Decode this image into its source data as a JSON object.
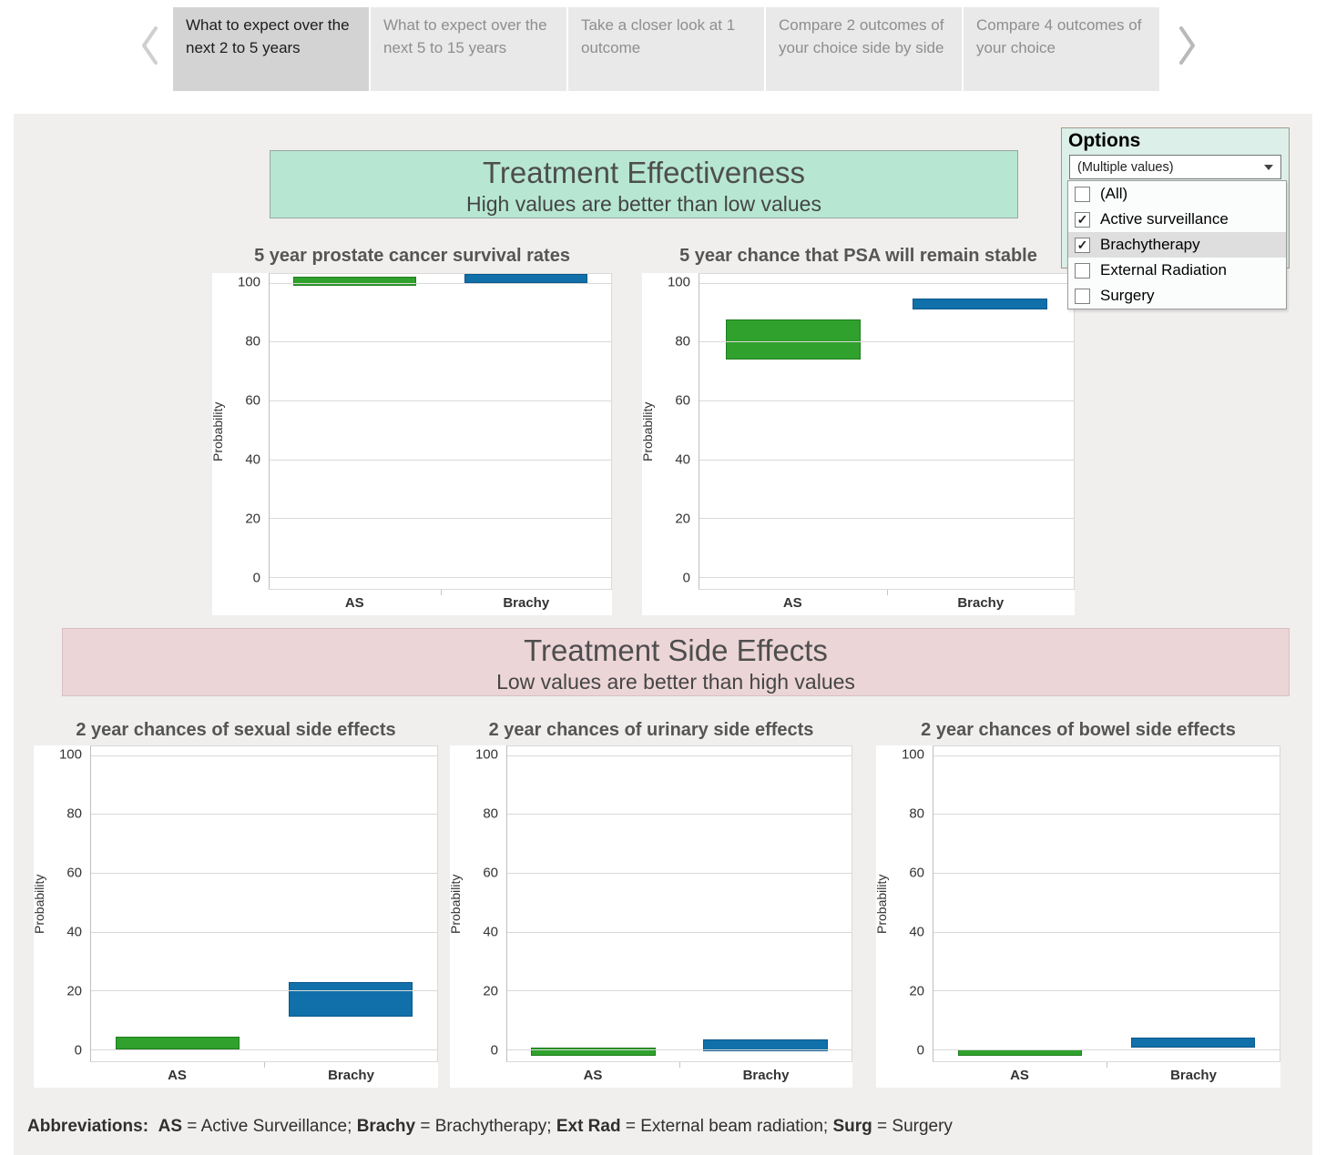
{
  "tabs": {
    "items": [
      {
        "label": "What to expect over the next 2 to 5 years",
        "active": true
      },
      {
        "label": "What to expect over the next 5 to 15 years",
        "active": false
      },
      {
        "label": "Take a closer look at 1 outcome",
        "active": false
      },
      {
        "label": "Compare 2 outcomes of your choice side by side",
        "active": false
      },
      {
        "label": "Compare 4 outcomes of your choice",
        "active": false
      }
    ],
    "prev_icon": "chevron-left",
    "next_icon": "chevron-right"
  },
  "options": {
    "title": "Options",
    "dropdown_value": "(Multiple values)",
    "check_glyph": "✓",
    "items": [
      {
        "label": "(All)",
        "checked": false,
        "highlighted": false
      },
      {
        "label": "Active surveillance",
        "checked": true,
        "highlighted": false
      },
      {
        "label": "Brachytherapy",
        "checked": true,
        "highlighted": true
      },
      {
        "label": "External Radiation",
        "checked": false,
        "highlighted": false
      },
      {
        "label": "Surgery",
        "checked": false,
        "highlighted": false
      }
    ]
  },
  "banners": {
    "effectiveness": {
      "title": "Treatment Effectiveness",
      "subtitle": "High values are better than low values",
      "bg": "#b7e7d3"
    },
    "side_effects": {
      "title": "Treatment Side Effects",
      "subtitle": "Low values are better than high values",
      "bg": "#ecd5d7"
    }
  },
  "chart_data": [
    {
      "id": "survival",
      "type": "bar",
      "bar_style": "range",
      "title": "5 year prostate cancer survival rates",
      "ylabel": "Probability",
      "yticks": [
        0,
        20,
        40,
        60,
        80,
        100
      ],
      "axis_range": [
        -4,
        103
      ],
      "grid": true,
      "categories": [
        "AS",
        "Brachy"
      ],
      "series": [
        {
          "name": "AS",
          "color_key": "green",
          "low": 99,
          "high": 102
        },
        {
          "name": "Brachy",
          "color_key": "blue",
          "low": 100,
          "high": 103
        }
      ]
    },
    {
      "id": "psa",
      "type": "bar",
      "bar_style": "range",
      "title": "5 year chance that PSA will remain stable",
      "ylabel": "Probability",
      "yticks": [
        0,
        20,
        40,
        60,
        80,
        100
      ],
      "axis_range": [
        -4,
        103
      ],
      "grid": true,
      "categories": [
        "AS",
        "Brachy"
      ],
      "series": [
        {
          "name": "AS",
          "color_key": "green",
          "low": 74,
          "high": 87.5
        },
        {
          "name": "Brachy",
          "color_key": "blue",
          "low": 91,
          "high": 94.5
        }
      ]
    },
    {
      "id": "sexual",
      "type": "bar",
      "bar_style": "range",
      "title": "2 year chances of sexual side effects",
      "ylabel": "Probability",
      "yticks": [
        0,
        20,
        40,
        60,
        80,
        100
      ],
      "axis_range": [
        -4,
        103
      ],
      "grid": true,
      "categories": [
        "AS",
        "Brachy"
      ],
      "series": [
        {
          "name": "AS",
          "color_key": "green",
          "low": 0,
          "high": 4.5
        },
        {
          "name": "Brachy",
          "color_key": "blue",
          "low": 11,
          "high": 23
        }
      ]
    },
    {
      "id": "urinary",
      "type": "bar",
      "bar_style": "range",
      "title": "2 year chances of urinary side effects",
      "ylabel": "Probability",
      "yticks": [
        0,
        20,
        40,
        60,
        80,
        100
      ],
      "axis_range": [
        -4,
        103
      ],
      "grid": true,
      "categories": [
        "AS",
        "Brachy"
      ],
      "series": [
        {
          "name": "AS",
          "color_key": "green",
          "low": -2,
          "high": 0.5
        },
        {
          "name": "Brachy",
          "color_key": "blue",
          "low": -0.5,
          "high": 3.5
        }
      ]
    },
    {
      "id": "bowel",
      "type": "bar",
      "bar_style": "range",
      "title": "2 year chances of bowel side effects",
      "ylabel": "Probability",
      "yticks": [
        0,
        20,
        40,
        60,
        80,
        100
      ],
      "axis_range": [
        -4,
        103
      ],
      "grid": true,
      "categories": [
        "AS",
        "Brachy"
      ],
      "series": [
        {
          "name": "AS",
          "color_key": "green",
          "low": -2,
          "high": 0
        },
        {
          "name": "Brachy",
          "color_key": "blue",
          "low": 0.5,
          "high": 4
        }
      ]
    }
  ],
  "footer": {
    "label": "Abbreviations:",
    "separator": "; ",
    "pairs": [
      {
        "abbr": "AS",
        "full": "Active Surveillance"
      },
      {
        "abbr": "Brachy",
        "full": "Brachytherapy"
      },
      {
        "abbr": "Ext Rad",
        "full": "External beam radiation"
      },
      {
        "abbr": "Surg",
        "full": "Surgery"
      }
    ]
  },
  "colors": {
    "green": "#2fa12c",
    "green_border": "#1f7d1f",
    "blue": "#1170aa",
    "blue_border": "#0b578b",
    "grid": "#d9d9d9",
    "dashboard_bg": "#f0efed",
    "mint_banner": "#b7e7d3",
    "pink_banner": "#ecd5d7",
    "tab_active_bg": "#d3d3d3",
    "tab_inactive_bg": "#e9e9e9"
  }
}
